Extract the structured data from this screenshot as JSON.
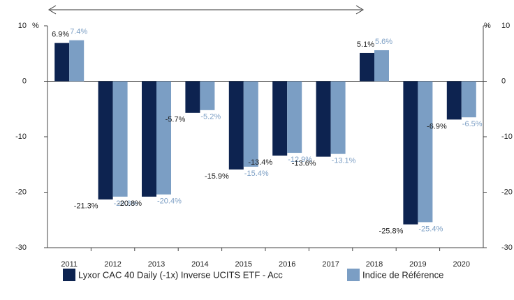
{
  "chart_data": {
    "type": "bar",
    "ylabel": "%",
    "y2label": "%",
    "categories": [
      "2011",
      "2012",
      "2013",
      "2014",
      "2015",
      "2016",
      "2017",
      "2018",
      "2019",
      "2020"
    ],
    "series": [
      {
        "name": "Lyxor CAC 40 Daily (-1x) Inverse UCITS ETF - Acc",
        "color": "#0d2350",
        "values": [
          6.9,
          -21.3,
          -20.8,
          -5.7,
          -15.9,
          -13.4,
          -13.6,
          5.1,
          -25.8,
          -6.9
        ],
        "value_labels": [
          "6.9%",
          "-21.3%",
          "-20.8%",
          "-5.7%",
          "-15.9%",
          "-13.4%",
          "-13.6%",
          "5.1%",
          "-25.8%",
          "-6.9%"
        ],
        "label_color": "#222222"
      },
      {
        "name": "Indice de Référence",
        "color": "#7b9ec4",
        "values": [
          7.4,
          -20.8,
          -20.4,
          -5.2,
          -15.4,
          -12.9,
          -13.1,
          5.6,
          -25.4,
          -6.5
        ],
        "value_labels": [
          "7.4%",
          "-20.8%",
          "-20.4%",
          "-5.2%",
          "-15.4%",
          "-12.9%",
          "-13.1%",
          "5.6%",
          "-25.4%",
          "-6.5%"
        ],
        "label_color": "#7b9ec4"
      }
    ],
    "ylim": [
      -30,
      10
    ],
    "yticks": [
      10,
      0,
      -10,
      -20,
      -30
    ],
    "y2lim": [
      -30,
      10
    ],
    "y2ticks": [
      10,
      0,
      -10,
      -20,
      -30
    ],
    "grid": false,
    "legend": "bottom"
  }
}
